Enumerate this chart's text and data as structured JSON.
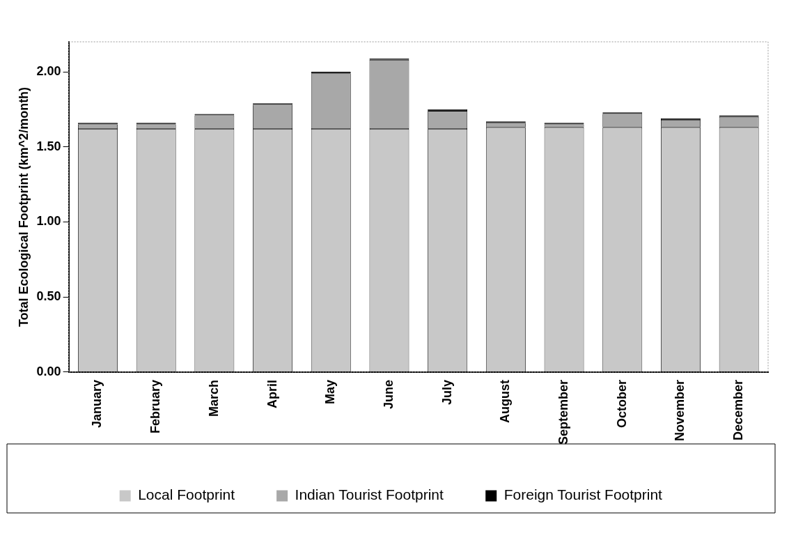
{
  "chart_data": {
    "type": "bar",
    "stacked": true,
    "ylabel": "Total Ecological Footprint (km^2/month)",
    "categories": [
      "January",
      "February",
      "March",
      "April",
      "May",
      "June",
      "July",
      "August",
      "September",
      "October",
      "November",
      "December"
    ],
    "series": [
      {
        "name": "Local Footprint",
        "color": "#c8c8c8",
        "values": [
          1.62,
          1.62,
          1.62,
          1.62,
          1.62,
          1.62,
          1.62,
          1.63,
          1.63,
          1.63,
          1.63,
          1.63
        ]
      },
      {
        "name": "Indian Tourist Footprint",
        "color": "#a8a8a8",
        "values": [
          0.03,
          0.03,
          0.09,
          0.16,
          0.37,
          0.46,
          0.12,
          0.03,
          0.02,
          0.09,
          0.05,
          0.07
        ]
      },
      {
        "name": "Foreign Tourist Footprint",
        "color": "#000000",
        "values": [
          0.01,
          0.01,
          0.01,
          0.01,
          0.01,
          0.01,
          0.01,
          0.01,
          0.01,
          0.01,
          0.01,
          0.01
        ]
      }
    ],
    "ylim": [
      0,
      2.2
    ],
    "yticks": [
      {
        "value": 0,
        "label": "0.00"
      },
      {
        "value": 0.5,
        "label": "0.50"
      },
      {
        "value": 1,
        "label": "1.00"
      },
      {
        "value": 1.5,
        "label": "1.50"
      },
      {
        "value": 2,
        "label": "2.00"
      }
    ],
    "grid": false,
    "legend": "bottom"
  }
}
